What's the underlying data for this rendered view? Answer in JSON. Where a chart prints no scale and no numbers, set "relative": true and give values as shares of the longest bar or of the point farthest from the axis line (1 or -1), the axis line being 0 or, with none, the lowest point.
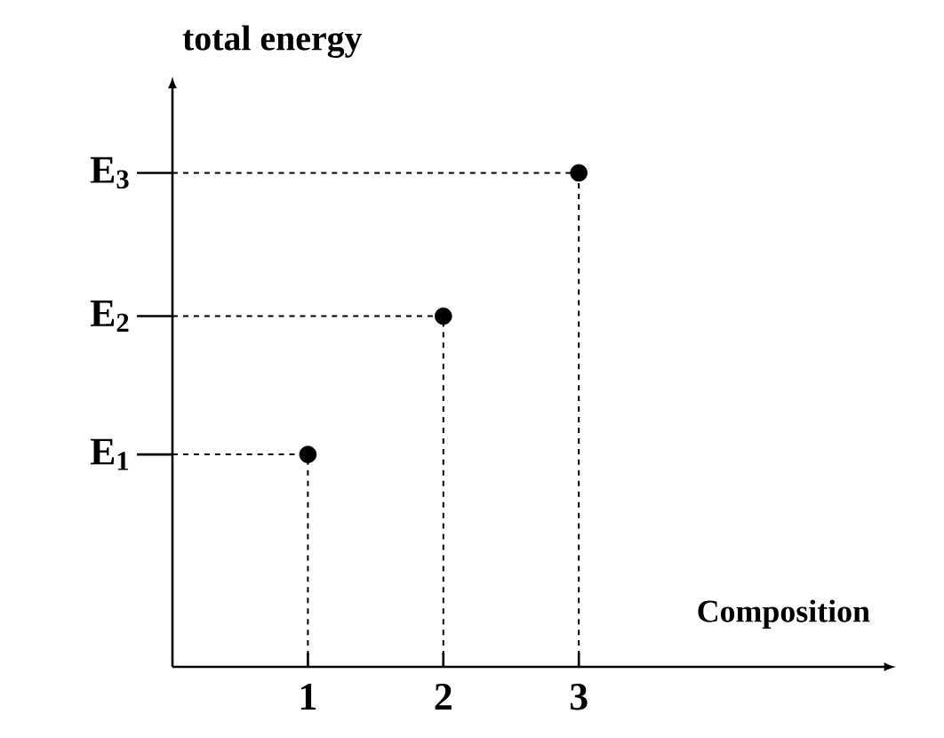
{
  "chart_data": {
    "type": "scatter",
    "relative": true,
    "xlabel": "Composition",
    "ylabel": "total energy",
    "x": [
      1,
      2,
      3
    ],
    "values": [
      0.43,
      0.71,
      1
    ],
    "color": "#000000",
    "marker": "circle",
    "xlim": [
      0,
      5.25
    ],
    "xticks": [
      1,
      2,
      3
    ],
    "grid": false,
    "ref_lines": [
      {
        "axis": "y",
        "value": 0.43,
        "label": "E$_{1}$",
        "line_style": "dashed"
      },
      {
        "axis": "y",
        "value": 0.71,
        "label": "E$_{2}$",
        "line_style": "dashed"
      },
      {
        "axis": "y",
        "value": 1,
        "label": "E$_{3}$",
        "line_style": "dashed"
      },
      {
        "axis": "x",
        "value": 1,
        "line_style": "dashed"
      },
      {
        "axis": "x",
        "value": 2,
        "line_style": "dashed"
      },
      {
        "axis": "x",
        "value": 3,
        "line_style": "dashed"
      }
    ]
  }
}
